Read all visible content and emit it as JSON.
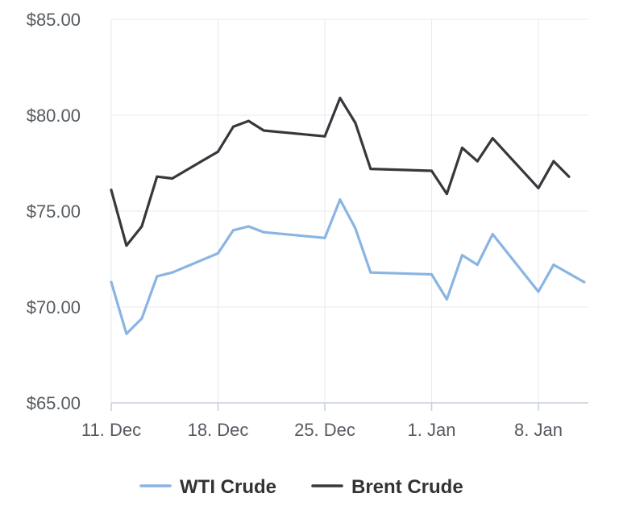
{
  "chart_data": {
    "type": "line",
    "title": "",
    "xlabel": "",
    "ylabel": "",
    "ylim": [
      65,
      85
    ],
    "y_ticks": [
      "$65.00",
      "$70.00",
      "$75.00",
      "$80.00",
      "$85.00"
    ],
    "y_tick_values": [
      65,
      70,
      75,
      80,
      85
    ],
    "x_ticks": [
      "11. Dec",
      "18. Dec",
      "25. Dec",
      "1. Jan",
      "8. Jan"
    ],
    "x_tick_dates": [
      "2023-12-11",
      "2023-12-18",
      "2023-12-25",
      "2024-01-01",
      "2024-01-08"
    ],
    "grid": true,
    "legend_position": "bottom",
    "series": [
      {
        "name": "WTI Crude",
        "color": "#8ab4e2",
        "points": [
          {
            "x": "2023-12-11",
            "y": 71.3
          },
          {
            "x": "2023-12-12",
            "y": 68.6
          },
          {
            "x": "2023-12-13",
            "y": 69.4
          },
          {
            "x": "2023-12-14",
            "y": 71.6
          },
          {
            "x": "2023-12-15",
            "y": 71.8
          },
          {
            "x": "2023-12-18",
            "y": 72.8
          },
          {
            "x": "2023-12-19",
            "y": 74.0
          },
          {
            "x": "2023-12-20",
            "y": 74.2
          },
          {
            "x": "2023-12-21",
            "y": 73.9
          },
          {
            "x": "2023-12-25",
            "y": 73.6
          },
          {
            "x": "2023-12-26",
            "y": 75.6
          },
          {
            "x": "2023-12-27",
            "y": 74.1
          },
          {
            "x": "2023-12-28",
            "y": 71.8
          },
          {
            "x": "2024-01-01",
            "y": 71.7
          },
          {
            "x": "2024-01-02",
            "y": 70.4
          },
          {
            "x": "2024-01-03",
            "y": 72.7
          },
          {
            "x": "2024-01-04",
            "y": 72.2
          },
          {
            "x": "2024-01-05",
            "y": 73.8
          },
          {
            "x": "2024-01-08",
            "y": 70.8
          },
          {
            "x": "2024-01-09",
            "y": 72.2
          },
          {
            "x": "2024-01-11",
            "y": 71.3
          }
        ]
      },
      {
        "name": "Brent Crude",
        "color": "#36383c",
        "points": [
          {
            "x": "2023-12-11",
            "y": 76.1
          },
          {
            "x": "2023-12-12",
            "y": 73.2
          },
          {
            "x": "2023-12-13",
            "y": 74.2
          },
          {
            "x": "2023-12-14",
            "y": 76.8
          },
          {
            "x": "2023-12-15",
            "y": 76.7
          },
          {
            "x": "2023-12-18",
            "y": 78.1
          },
          {
            "x": "2023-12-19",
            "y": 79.4
          },
          {
            "x": "2023-12-20",
            "y": 79.7
          },
          {
            "x": "2023-12-21",
            "y": 79.2
          },
          {
            "x": "2023-12-25",
            "y": 78.9
          },
          {
            "x": "2023-12-26",
            "y": 80.9
          },
          {
            "x": "2023-12-27",
            "y": 79.6
          },
          {
            "x": "2023-12-28",
            "y": 77.2
          },
          {
            "x": "2024-01-01",
            "y": 77.1
          },
          {
            "x": "2024-01-02",
            "y": 75.9
          },
          {
            "x": "2024-01-03",
            "y": 78.3
          },
          {
            "x": "2024-01-04",
            "y": 77.6
          },
          {
            "x": "2024-01-05",
            "y": 78.8
          },
          {
            "x": "2024-01-08",
            "y": 76.2
          },
          {
            "x": "2024-01-09",
            "y": 77.6
          },
          {
            "x": "2024-01-10",
            "y": 76.8
          }
        ]
      }
    ]
  }
}
